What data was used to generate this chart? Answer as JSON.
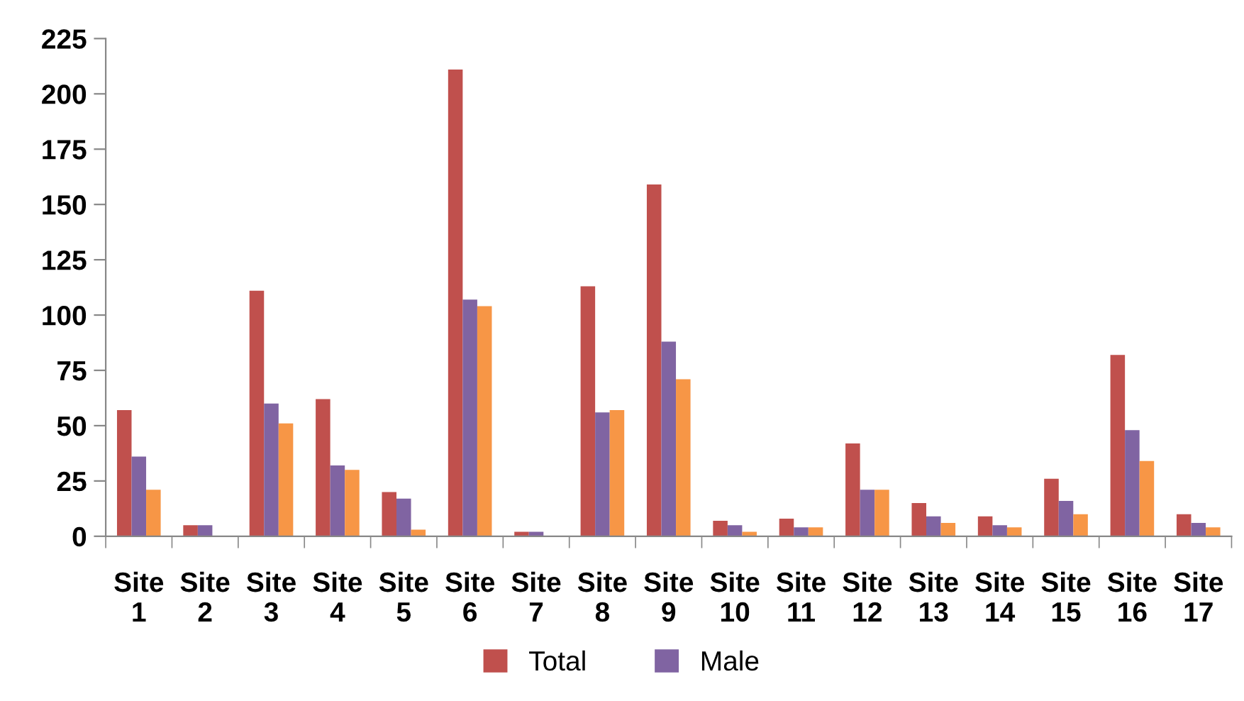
{
  "chart_data": {
    "type": "bar",
    "categories": [
      "Site 1",
      "Site 2",
      "Site 3",
      "Site 4",
      "Site 5",
      "Site 6",
      "Site 7",
      "Site 8",
      "Site 9",
      "Site 10",
      "Site 11",
      "Site 12",
      "Site 13",
      "Site 14",
      "Site 15",
      "Site 16",
      "Site 17"
    ],
    "series": [
      {
        "name": "Total",
        "color": "#c0504d",
        "values": [
          57,
          5,
          111,
          62,
          20,
          211,
          2,
          113,
          159,
          7,
          8,
          42,
          15,
          9,
          26,
          82,
          10
        ]
      },
      {
        "name": "Male",
        "color": "#8064a2",
        "values": [
          36,
          5,
          60,
          32,
          17,
          107,
          2,
          56,
          88,
          5,
          4,
          21,
          9,
          5,
          16,
          48,
          6
        ]
      },
      {
        "color": "#f79646",
        "values": [
          21,
          null,
          51,
          30,
          3,
          104,
          null,
          57,
          71,
          2,
          4,
          21,
          6,
          4,
          10,
          34,
          4
        ]
      }
    ],
    "ylim": [
      0,
      225
    ],
    "yticks": [
      0,
      25,
      50,
      75,
      100,
      125,
      150,
      175,
      200,
      225
    ],
    "grid": false,
    "legend": "bottom"
  }
}
